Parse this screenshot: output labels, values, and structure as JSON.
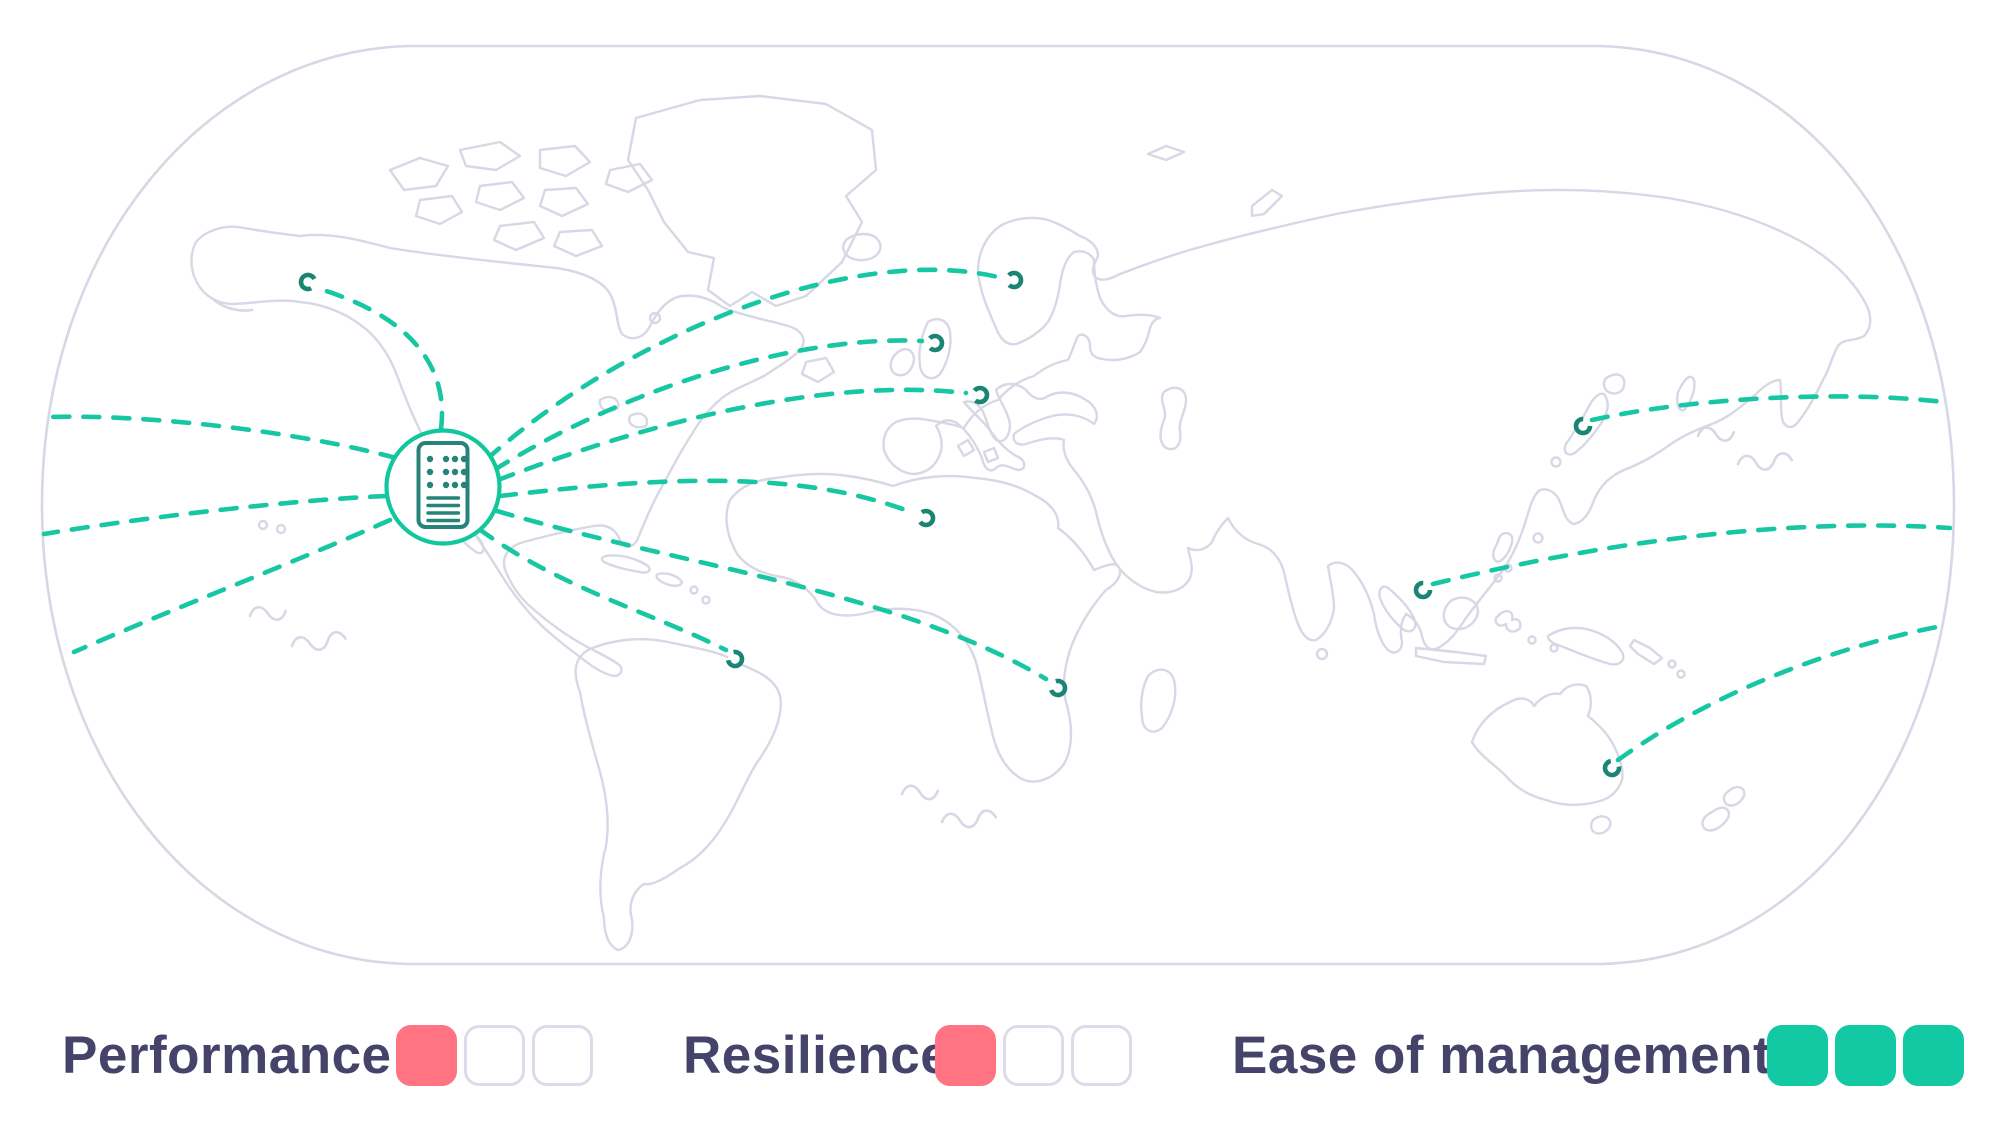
{
  "diagram": {
    "type": "single-data-center-global-connections-map",
    "server_node": "data-center-server",
    "connections": [
      "alaska",
      "norway",
      "united-kingdom",
      "central-europe",
      "north-africa",
      "southern-africa",
      "brazil",
      "japan",
      "southeast-asia",
      "australia"
    ]
  },
  "legend": {
    "items": [
      {
        "label": "Performance",
        "rating": 1,
        "max": 3,
        "filled_color": "#ff7383",
        "empty_border": "#dcdce9"
      },
      {
        "label": "Resilience",
        "rating": 1,
        "max": 3,
        "filled_color": "#ff7383",
        "empty_border": "#dcdce9"
      },
      {
        "label": "Ease of management",
        "rating": 3,
        "max": 3,
        "filled_color": "#12c9a4",
        "empty_border": "#dcdce9"
      }
    ],
    "text_color": "#454369"
  },
  "colors": {
    "connection_dash": "#17c6a2",
    "endpoint_ring": "#1b8573",
    "server_circle": "#12c79c",
    "server_icon": "#27837a",
    "map_outline": "#d7d7e6",
    "rating_pink": "#ff7383",
    "rating_teal": "#12c9a4",
    "background": "#ffffff"
  }
}
